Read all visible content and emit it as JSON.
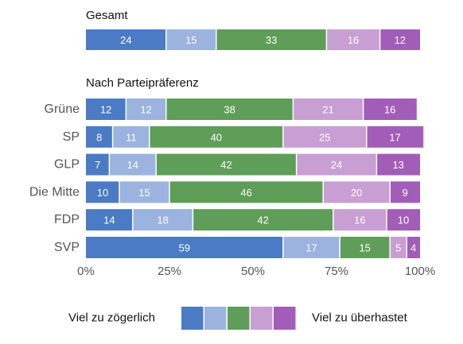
{
  "chart_data": {
    "type": "bar",
    "orientation": "horizontal-stacked-100",
    "colors": [
      "#4a7bc4",
      "#9bb3de",
      "#5e9e58",
      "#c89fd3",
      "#a25db8"
    ],
    "xaxis": {
      "ticks": [
        0,
        25,
        50,
        75,
        100
      ],
      "tick_labels": [
        "0%",
        "25%",
        "50%",
        "75%",
        "100%"
      ],
      "xlim": [
        0,
        100
      ]
    },
    "overall": {
      "title": "Gesamt",
      "values": [
        24,
        15,
        33,
        16,
        12
      ]
    },
    "by_party": {
      "title": "Nach Parteipräferenz",
      "categories": [
        "Grüne",
        "SP",
        "GLP",
        "Die Mitte",
        "FDP",
        "SVP"
      ],
      "values": [
        [
          12,
          12,
          38,
          21,
          16
        ],
        [
          8,
          11,
          40,
          25,
          17
        ],
        [
          7,
          14,
          42,
          24,
          13
        ],
        [
          10,
          15,
          46,
          20,
          9
        ],
        [
          14,
          18,
          42,
          16,
          10
        ],
        [
          59,
          17,
          15,
          5,
          4
        ]
      ]
    },
    "legend": {
      "left_label": "Viel zu zögerlich",
      "right_label": "Viel zu überhastet",
      "position": "bottom"
    },
    "grid": false
  }
}
